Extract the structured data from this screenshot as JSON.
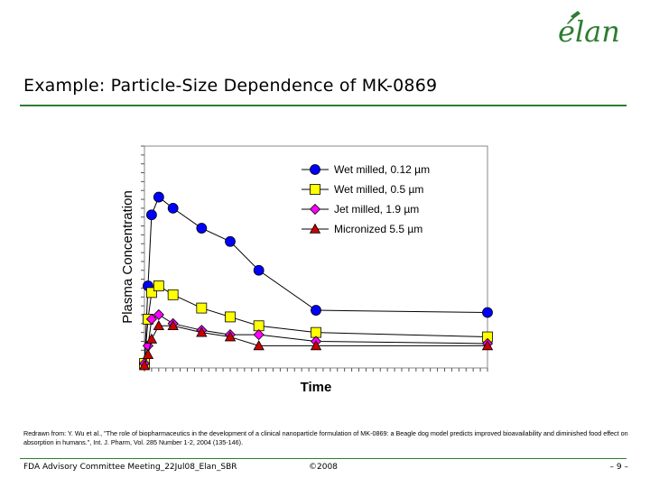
{
  "logo": {
    "text": "élan",
    "color": "#2e7d32"
  },
  "slide": {
    "title": "Example: Particle-Size Dependence of MK-0869",
    "source_text": "Redrawn from: Y. Wu et al., \"The role of biopharmaceutics in the development of a clinical nanoparticle formulation of MK-0869: a Beagle dog model predicts improved bioavailability and diminished food effect on absorption in humans.\", Int. J. Pharm, Vol. 285 Number 1-2, 2004 (135-146).",
    "footer_left": "FDA Advisory Committee Meeting_22Jul08_Elan_SBR",
    "footer_center": "©2008",
    "footer_right": "– 9 –",
    "accent_color": "#2e7d32"
  },
  "chart_data": {
    "type": "line",
    "title": "",
    "xlabel": "Time",
    "ylabel": "Plasma Concentration",
    "xlim": [
      0,
      24
    ],
    "ylim": [
      0,
      100
    ],
    "grid": false,
    "legend_position": "top-right",
    "series": [
      {
        "name": "Wet milled, 0.12 µm",
        "color": "#0000ff",
        "marker": "circle",
        "x": [
          0,
          0.25,
          0.5,
          1,
          2,
          4,
          6,
          8,
          12,
          24
        ],
        "y": [
          2,
          37,
          69,
          77,
          72,
          63,
          57,
          44,
          26,
          25
        ]
      },
      {
        "name": "Wet milled, 0.5 µm",
        "color": "#ffff00",
        "marker": "square",
        "x": [
          0,
          0.25,
          0.5,
          1,
          2,
          4,
          6,
          8,
          12,
          24
        ],
        "y": [
          2,
          22,
          34,
          37,
          33,
          27,
          23,
          19,
          16,
          14
        ]
      },
      {
        "name": "Jet milled, 1.9 µm",
        "color": "#ff00ff",
        "marker": "diamond",
        "x": [
          0,
          0.25,
          0.5,
          1,
          2,
          4,
          6,
          8,
          12,
          24
        ],
        "y": [
          2,
          10,
          22,
          24,
          20,
          17,
          15,
          15,
          12,
          11
        ]
      },
      {
        "name": "Micronized 5.5 µm",
        "color": "#cc0000",
        "marker": "triangle",
        "x": [
          0,
          0.25,
          0.5,
          1,
          2,
          4,
          6,
          8,
          12,
          24
        ],
        "y": [
          1,
          6,
          13,
          19,
          19,
          16,
          14,
          10,
          10,
          10
        ]
      }
    ]
  }
}
